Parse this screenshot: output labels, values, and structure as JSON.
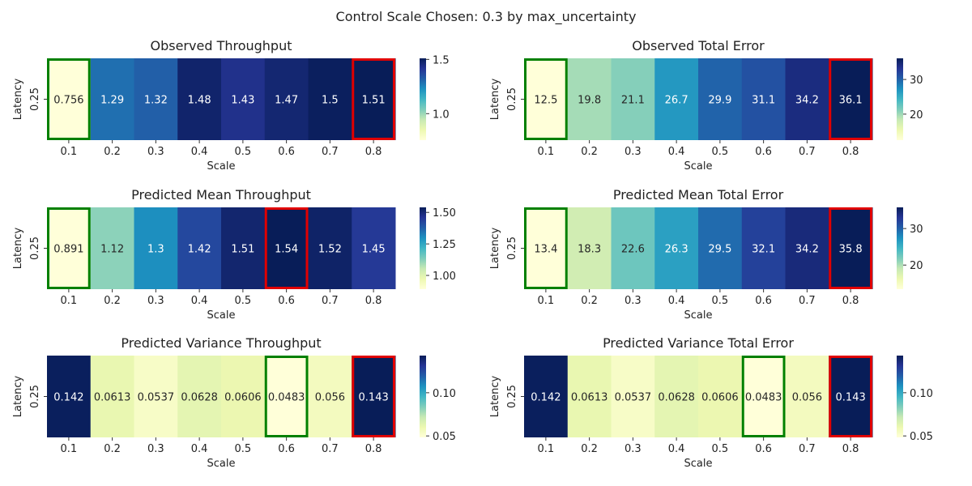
{
  "suptitle": "Control Scale Chosen: 0.3 by max_uncertainty",
  "colors": {
    "min_marker": "#008000",
    "max_marker": "#e00000",
    "colormap": "YlGnBu",
    "text_dark": "#262626",
    "text_light": "#ffffff"
  },
  "chart_data": [
    {
      "type": "heatmap",
      "title": "Observed Throughput",
      "xlabel": "Scale",
      "ylabel": "Latency",
      "categories": [
        "0.1",
        "0.2",
        "0.3",
        "0.4",
        "0.5",
        "0.6",
        "0.7",
        "0.8"
      ],
      "row_label": "0.25",
      "values": [
        0.756,
        1.29,
        1.32,
        1.48,
        1.43,
        1.47,
        1.5,
        1.51
      ],
      "labels": [
        "0.756",
        "1.29",
        "1.32",
        "1.48",
        "1.43",
        "1.47",
        "1.5",
        "1.51"
      ],
      "vmin": 0.756,
      "vmax": 1.51,
      "colorbar_ticks": [
        1.0,
        1.5
      ],
      "colorbar_tick_labels": [
        "1.0",
        "1.5"
      ],
      "min_index": 0,
      "max_index": 7
    },
    {
      "type": "heatmap",
      "title": "Observed Total Error",
      "xlabel": "Scale",
      "ylabel": "Latency",
      "categories": [
        "0.1",
        "0.2",
        "0.3",
        "0.4",
        "0.5",
        "0.6",
        "0.7",
        "0.8"
      ],
      "row_label": "0.25",
      "values": [
        12.5,
        19.8,
        21.1,
        26.7,
        29.9,
        31.1,
        34.2,
        36.1
      ],
      "labels": [
        "12.5",
        "19.8",
        "21.1",
        "26.7",
        "29.9",
        "31.1",
        "34.2",
        "36.1"
      ],
      "vmin": 12.5,
      "vmax": 36.1,
      "colorbar_ticks": [
        20,
        30
      ],
      "colorbar_tick_labels": [
        "20",
        "30"
      ],
      "min_index": 0,
      "max_index": 7
    },
    {
      "type": "heatmap",
      "title": "Predicted Mean Throughput",
      "xlabel": "Scale",
      "ylabel": "Latency",
      "categories": [
        "0.1",
        "0.2",
        "0.3",
        "0.4",
        "0.5",
        "0.6",
        "0.7",
        "0.8"
      ],
      "row_label": "0.25",
      "values": [
        0.891,
        1.12,
        1.3,
        1.42,
        1.51,
        1.54,
        1.52,
        1.45
      ],
      "labels": [
        "0.891",
        "1.12",
        "1.3",
        "1.42",
        "1.51",
        "1.54",
        "1.52",
        "1.45"
      ],
      "vmin": 0.891,
      "vmax": 1.54,
      "colorbar_ticks": [
        1.0,
        1.25,
        1.5
      ],
      "colorbar_tick_labels": [
        "1.00",
        "1.25",
        "1.50"
      ],
      "min_index": 0,
      "max_index": 5
    },
    {
      "type": "heatmap",
      "title": "Predicted Mean Total Error",
      "xlabel": "Scale",
      "ylabel": "Latency",
      "categories": [
        "0.1",
        "0.2",
        "0.3",
        "0.4",
        "0.5",
        "0.6",
        "0.7",
        "0.8"
      ],
      "row_label": "0.25",
      "values": [
        13.4,
        18.3,
        22.6,
        26.3,
        29.5,
        32.1,
        34.2,
        35.8
      ],
      "labels": [
        "13.4",
        "18.3",
        "22.6",
        "26.3",
        "29.5",
        "32.1",
        "34.2",
        "35.8"
      ],
      "vmin": 13.4,
      "vmax": 35.8,
      "colorbar_ticks": [
        20,
        30
      ],
      "colorbar_tick_labels": [
        "20",
        "30"
      ],
      "min_index": 0,
      "max_index": 7
    },
    {
      "type": "heatmap",
      "title": "Predicted Variance Throughput",
      "xlabel": "Scale",
      "ylabel": "Latency",
      "categories": [
        "0.1",
        "0.2",
        "0.3",
        "0.4",
        "0.5",
        "0.6",
        "0.7",
        "0.8"
      ],
      "row_label": "0.25",
      "values": [
        0.142,
        0.0613,
        0.0537,
        0.0628,
        0.0606,
        0.0483,
        0.056,
        0.143
      ],
      "labels": [
        "0.142",
        "0.0613",
        "0.0537",
        "0.0628",
        "0.0606",
        "0.0483",
        "0.056",
        "0.143"
      ],
      "vmin": 0.0483,
      "vmax": 0.143,
      "colorbar_ticks": [
        0.05,
        0.1
      ],
      "colorbar_tick_labels": [
        "0.05",
        "0.10"
      ],
      "min_index": 5,
      "max_index": 7
    },
    {
      "type": "heatmap",
      "title": "Predicted Variance Total Error",
      "xlabel": "Scale",
      "ylabel": "Latency",
      "categories": [
        "0.1",
        "0.2",
        "0.3",
        "0.4",
        "0.5",
        "0.6",
        "0.7",
        "0.8"
      ],
      "row_label": "0.25",
      "values": [
        0.142,
        0.0613,
        0.0537,
        0.0628,
        0.0606,
        0.0483,
        0.056,
        0.143
      ],
      "labels": [
        "0.142",
        "0.0613",
        "0.0537",
        "0.0628",
        "0.0606",
        "0.0483",
        "0.056",
        "0.143"
      ],
      "vmin": 0.0483,
      "vmax": 0.143,
      "colorbar_ticks": [
        0.05,
        0.1
      ],
      "colorbar_tick_labels": [
        "0.05",
        "0.10"
      ],
      "min_index": 5,
      "max_index": 7
    }
  ]
}
